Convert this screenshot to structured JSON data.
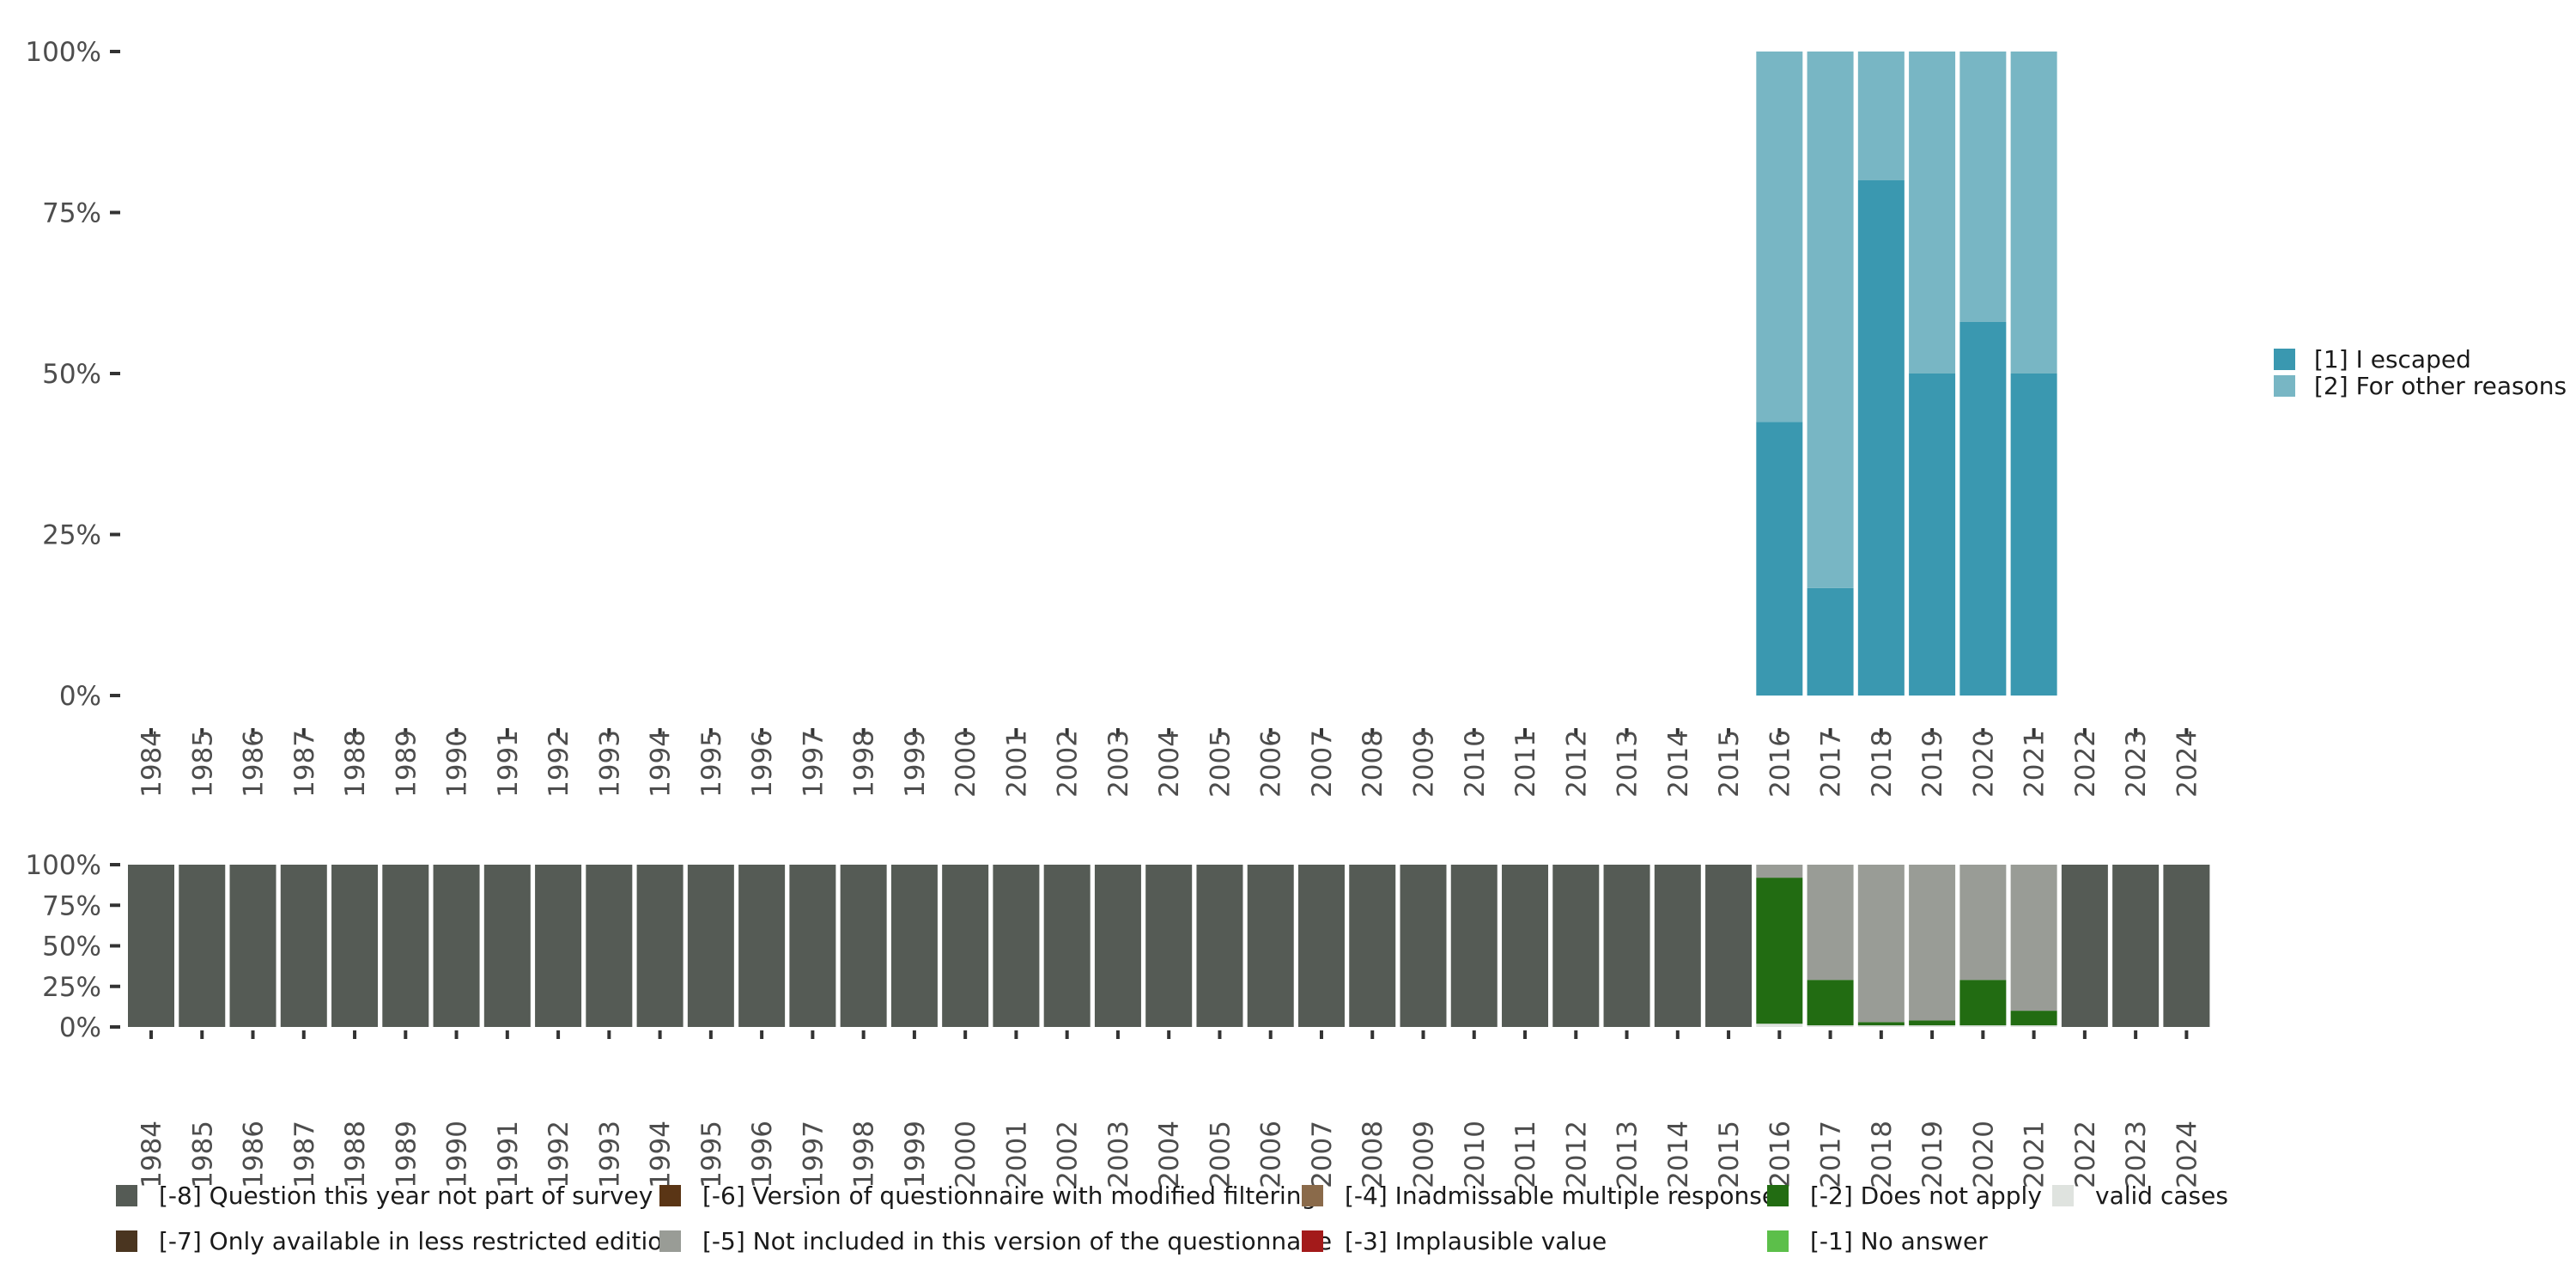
{
  "chart_data": [
    {
      "type": "bar",
      "stacked": true,
      "normalized": true,
      "categories": [
        "1984",
        "1985",
        "1986",
        "1987",
        "1988",
        "1989",
        "1990",
        "1991",
        "1992",
        "1993",
        "1994",
        "1995",
        "1996",
        "1997",
        "1998",
        "1999",
        "2000",
        "2001",
        "2002",
        "2003",
        "2004",
        "2005",
        "2006",
        "2007",
        "2008",
        "2009",
        "2010",
        "2011",
        "2012",
        "2013",
        "2014",
        "2015",
        "2016",
        "2017",
        "2018",
        "2019",
        "2020",
        "2021",
        "2022",
        "2023",
        "2024"
      ],
      "y_ticks": [
        "0%",
        "25%",
        "50%",
        "75%",
        "100%"
      ],
      "ylim": [
        0,
        100
      ],
      "legend_position": "right",
      "series": [
        {
          "name": "[1] I escaped",
          "color": "#3a98b0",
          "values": [
            null,
            null,
            null,
            null,
            null,
            null,
            null,
            null,
            null,
            null,
            null,
            null,
            null,
            null,
            null,
            null,
            null,
            null,
            null,
            null,
            null,
            null,
            null,
            null,
            null,
            null,
            null,
            null,
            null,
            null,
            null,
            null,
            42.5,
            16.7,
            80,
            50,
            58,
            50,
            null,
            null,
            null
          ]
        },
        {
          "name": "[2] For other reasons",
          "color": "#78b6c4",
          "values": [
            null,
            null,
            null,
            null,
            null,
            null,
            null,
            null,
            null,
            null,
            null,
            null,
            null,
            null,
            null,
            null,
            null,
            null,
            null,
            null,
            null,
            null,
            null,
            null,
            null,
            null,
            null,
            null,
            null,
            null,
            null,
            null,
            57.5,
            83.3,
            20,
            50,
            42,
            50,
            null,
            null,
            null
          ]
        }
      ]
    },
    {
      "type": "bar",
      "stacked": true,
      "normalized": true,
      "categories": [
        "1984",
        "1985",
        "1986",
        "1987",
        "1988",
        "1989",
        "1990",
        "1991",
        "1992",
        "1993",
        "1994",
        "1995",
        "1996",
        "1997",
        "1998",
        "1999",
        "2000",
        "2001",
        "2002",
        "2003",
        "2004",
        "2005",
        "2006",
        "2007",
        "2008",
        "2009",
        "2010",
        "2011",
        "2012",
        "2013",
        "2014",
        "2015",
        "2016",
        "2017",
        "2018",
        "2019",
        "2020",
        "2021",
        "2022",
        "2023",
        "2024"
      ],
      "y_ticks": [
        "0%",
        "25%",
        "50%",
        "75%",
        "100%"
      ],
      "ylim": [
        0,
        100
      ],
      "legend_position": "bottom",
      "series": [
        {
          "name": "valid cases",
          "color": "#dfe3df",
          "values": [
            0,
            0,
            0,
            0,
            0,
            0,
            0,
            0,
            0,
            0,
            0,
            0,
            0,
            0,
            0,
            0,
            0,
            0,
            0,
            0,
            0,
            0,
            0,
            0,
            0,
            0,
            0,
            0,
            0,
            0,
            0,
            0,
            2,
            1,
            1,
            1,
            1,
            1,
            0,
            0,
            0
          ]
        },
        {
          "name": "[-1] No answer",
          "color": "#5cbf4a",
          "values": [
            0,
            0,
            0,
            0,
            0,
            0,
            0,
            0,
            0,
            0,
            0,
            0,
            0,
            0,
            0,
            0,
            0,
            0,
            0,
            0,
            0,
            0,
            0,
            0,
            0,
            0,
            0,
            0,
            0,
            0,
            0,
            0,
            0,
            0,
            0,
            0,
            0,
            0,
            0,
            0,
            0
          ]
        },
        {
          "name": "[-2] Does not apply",
          "color": "#226c12",
          "values": [
            0,
            0,
            0,
            0,
            0,
            0,
            0,
            0,
            0,
            0,
            0,
            0,
            0,
            0,
            0,
            0,
            0,
            0,
            0,
            0,
            0,
            0,
            0,
            0,
            0,
            0,
            0,
            0,
            0,
            0,
            0,
            0,
            90,
            28,
            2,
            3,
            28,
            9,
            0,
            0,
            0
          ]
        },
        {
          "name": "[-3] Implausible value",
          "color": "#a31a1a",
          "values": [
            0,
            0,
            0,
            0,
            0,
            0,
            0,
            0,
            0,
            0,
            0,
            0,
            0,
            0,
            0,
            0,
            0,
            0,
            0,
            0,
            0,
            0,
            0,
            0,
            0,
            0,
            0,
            0,
            0,
            0,
            0,
            0,
            0,
            0,
            0,
            0,
            0,
            0,
            0,
            0,
            0
          ]
        },
        {
          "name": "[-4] Inadmissable multiple response",
          "color": "#8a6a4a",
          "values": [
            0,
            0,
            0,
            0,
            0,
            0,
            0,
            0,
            0,
            0,
            0,
            0,
            0,
            0,
            0,
            0,
            0,
            0,
            0,
            0,
            0,
            0,
            0,
            0,
            0,
            0,
            0,
            0,
            0,
            0,
            0,
            0,
            0,
            0,
            0,
            0,
            0,
            0,
            0,
            0,
            0
          ]
        },
        {
          "name": "[-5] Not included in this version of the questionnaire",
          "color": "#999c96",
          "values": [
            0,
            0,
            0,
            0,
            0,
            0,
            0,
            0,
            0,
            0,
            0,
            0,
            0,
            0,
            0,
            0,
            0,
            0,
            0,
            0,
            0,
            0,
            0,
            0,
            0,
            0,
            0,
            0,
            0,
            0,
            0,
            0,
            8,
            71,
            97,
            96,
            71,
            90,
            0,
            0,
            0
          ]
        },
        {
          "name": "[-6] Version of questionnaire with modified filtering",
          "color": "#5a3515",
          "values": [
            0,
            0,
            0,
            0,
            0,
            0,
            0,
            0,
            0,
            0,
            0,
            0,
            0,
            0,
            0,
            0,
            0,
            0,
            0,
            0,
            0,
            0,
            0,
            0,
            0,
            0,
            0,
            0,
            0,
            0,
            0,
            0,
            0,
            0,
            0,
            0,
            0,
            0,
            0,
            0,
            0
          ]
        },
        {
          "name": "[-7] Only available in less restricted edition",
          "color": "#4a3520",
          "values": [
            0,
            0,
            0,
            0,
            0,
            0,
            0,
            0,
            0,
            0,
            0,
            0,
            0,
            0,
            0,
            0,
            0,
            0,
            0,
            0,
            0,
            0,
            0,
            0,
            0,
            0,
            0,
            0,
            0,
            0,
            0,
            0,
            0,
            0,
            0,
            0,
            0,
            0,
            0,
            0,
            0
          ]
        },
        {
          "name": "[-8] Question this year not part of survey",
          "color": "#555b55",
          "values": [
            100,
            100,
            100,
            100,
            100,
            100,
            100,
            100,
            100,
            100,
            100,
            100,
            100,
            100,
            100,
            100,
            100,
            100,
            100,
            100,
            100,
            100,
            100,
            100,
            100,
            100,
            100,
            100,
            100,
            100,
            100,
            100,
            0,
            0,
            0,
            0,
            0,
            0,
            100,
            100,
            100
          ]
        }
      ],
      "legend_order": [
        "[-8] Question this year not part of survey",
        "[-6] Version of questionnaire with modified filtering",
        "[-4] Inadmissable multiple response",
        "[-2] Does not apply",
        "valid cases",
        "[-7] Only available in less restricted edition",
        "[-5] Not included in this version of the questionnaire",
        "[-3] Implausible value",
        "[-1] No answer"
      ]
    }
  ]
}
